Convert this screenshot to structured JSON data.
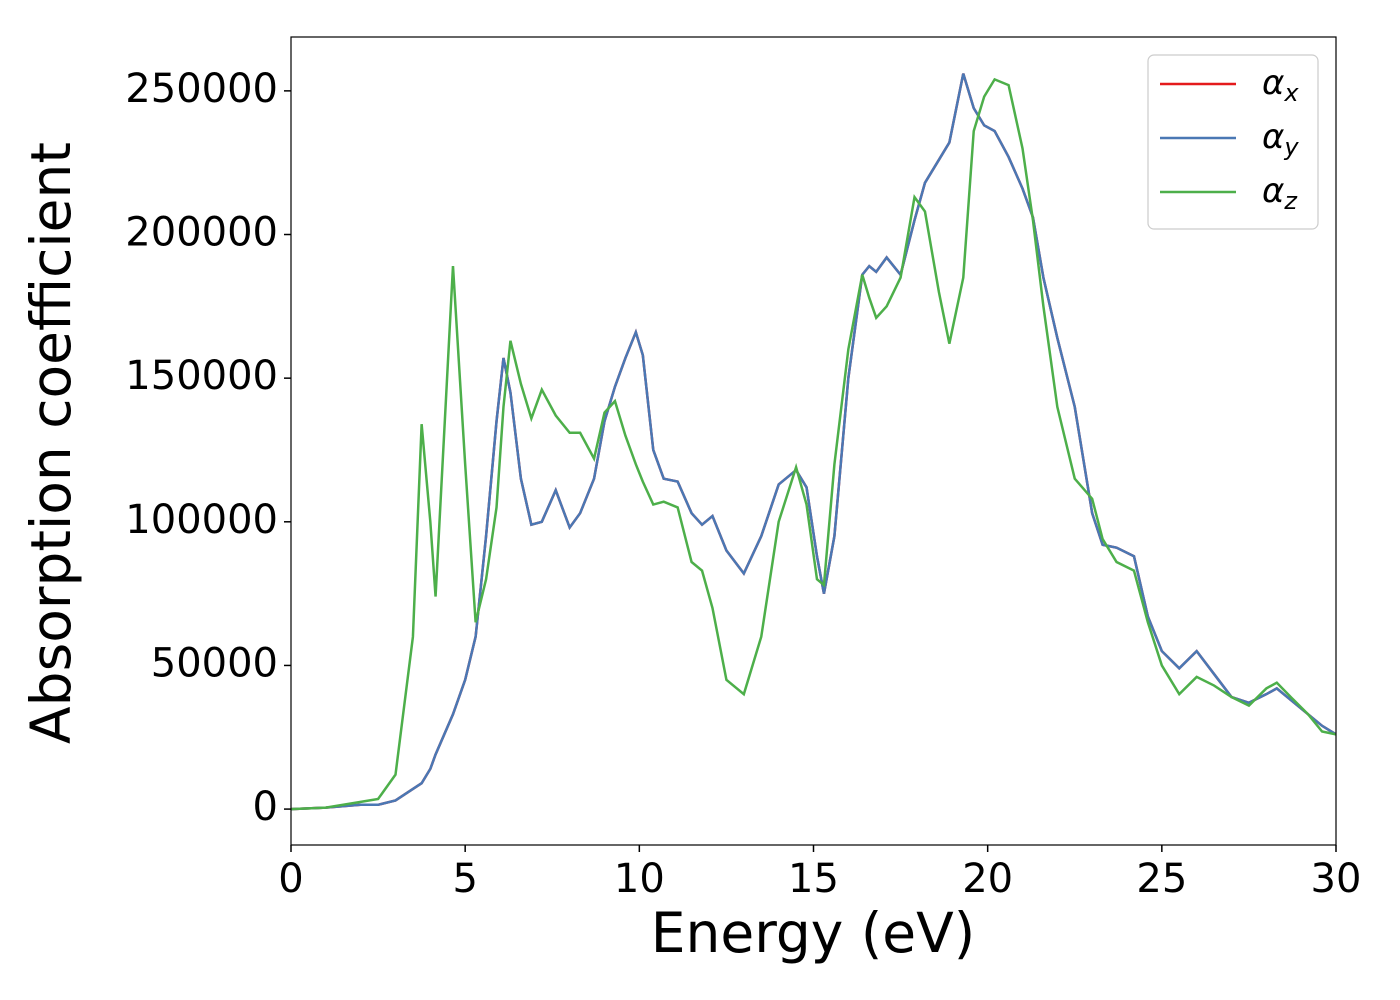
{
  "chart_data": {
    "type": "line",
    "x_label": "Energy (eV)",
    "y_label": "Absorption coefficient",
    "x": [
      0,
      1,
      2,
      2.5,
      3,
      3.5,
      3.75,
      4,
      4.15,
      4.65,
      5,
      5.3,
      5.6,
      5.9,
      6.1,
      6.3,
      6.6,
      6.9,
      7.2,
      7.6,
      8,
      8.3,
      8.7,
      9,
      9.3,
      9.6,
      9.9,
      10.1,
      10.4,
      10.7,
      11.1,
      11.5,
      11.8,
      12.1,
      12.5,
      13,
      13.5,
      14,
      14.5,
      14.8,
      15.1,
      15.3,
      15.6,
      16,
      16.4,
      16.6,
      16.8,
      17.1,
      17.5,
      17.9,
      18.2,
      18.6,
      18.9,
      19.3,
      19.6,
      19.9,
      20.2,
      20.6,
      21,
      21.3,
      21.6,
      22,
      22.5,
      23,
      23.3,
      23.7,
      24.2,
      24.6,
      25,
      25.5,
      26,
      26.5,
      27,
      27.5,
      28,
      28.3,
      28.7,
      29.2,
      29.6,
      30
    ],
    "series": [
      {
        "name": "αx",
        "color": "#e41a1c",
        "values": [
          0,
          500,
          1500,
          1500,
          3000,
          7000,
          9000,
          14000,
          19000,
          33000,
          45000,
          60000,
          95000,
          135000,
          157000,
          145000,
          115000,
          99000,
          100000,
          111000,
          98000,
          103000,
          115000,
          135000,
          147000,
          157000,
          166000,
          158000,
          125000,
          115000,
          114000,
          103000,
          99000,
          102000,
          90000,
          82000,
          95000,
          113000,
          118000,
          112000,
          88000,
          75000,
          95000,
          150000,
          186000,
          189000,
          187000,
          192000,
          186000,
          205000,
          218000,
          226000,
          232000,
          256000,
          244000,
          238000,
          236000,
          227000,
          216000,
          206000,
          185000,
          164000,
          140000,
          103000,
          92000,
          91000,
          88000,
          67000,
          55000,
          49000,
          55000,
          47000,
          39000,
          37000,
          40000,
          42000,
          38000,
          33000,
          29000,
          26000
        ]
      },
      {
        "name": "αy",
        "color": "#4a78b4",
        "values": [
          0,
          500,
          1500,
          1500,
          3000,
          7000,
          9000,
          14000,
          19000,
          33000,
          45000,
          60000,
          95000,
          135000,
          157000,
          145000,
          115000,
          99000,
          100000,
          111000,
          98000,
          103000,
          115000,
          135000,
          147000,
          157000,
          166000,
          158000,
          125000,
          115000,
          114000,
          103000,
          99000,
          102000,
          90000,
          82000,
          95000,
          113000,
          118000,
          112000,
          88000,
          75000,
          95000,
          150000,
          186000,
          189000,
          187000,
          192000,
          186000,
          205000,
          218000,
          226000,
          232000,
          256000,
          244000,
          238000,
          236000,
          227000,
          216000,
          206000,
          185000,
          164000,
          140000,
          103000,
          92000,
          91000,
          88000,
          67000,
          55000,
          49000,
          55000,
          47000,
          39000,
          37000,
          40000,
          42000,
          38000,
          33000,
          29000,
          26000
        ]
      },
      {
        "name": "αz",
        "color": "#4daf4a",
        "values": [
          0,
          500,
          2500,
          3500,
          12000,
          60000,
          134000,
          100000,
          74000,
          189000,
          120000,
          65000,
          80000,
          105000,
          140000,
          163000,
          148000,
          136000,
          146000,
          137000,
          131000,
          131000,
          122000,
          138000,
          142000,
          130000,
          120000,
          114000,
          106000,
          107000,
          105000,
          86000,
          83000,
          70000,
          45000,
          40000,
          60000,
          100000,
          119000,
          106000,
          80000,
          78000,
          120000,
          160000,
          186000,
          178000,
          171000,
          175000,
          185000,
          213000,
          208000,
          180000,
          162000,
          185000,
          236000,
          248000,
          254000,
          252000,
          230000,
          205000,
          175000,
          140000,
          115000,
          108000,
          94000,
          86000,
          83000,
          65000,
          50000,
          40000,
          46000,
          43000,
          39000,
          36000,
          42000,
          44000,
          39000,
          33000,
          27000,
          26000
        ]
      }
    ],
    "xlim": [
      0,
      30
    ],
    "xticks": [
      0,
      5,
      10,
      15,
      20,
      25,
      30
    ],
    "ylim": [
      -12500,
      268750
    ],
    "yticks": [
      0,
      50000,
      100000,
      150000,
      200000,
      250000
    ],
    "grid": false,
    "legend": "upper right"
  }
}
